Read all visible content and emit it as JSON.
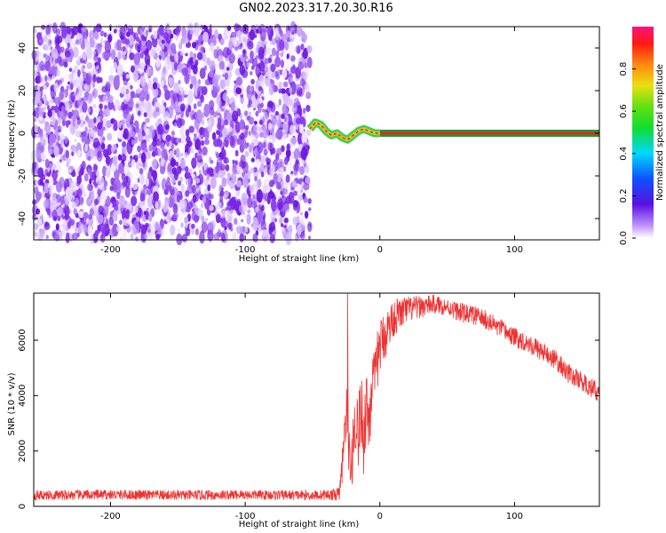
{
  "title": "GN02.2023.317.20.30.R16",
  "chart_data": [
    {
      "type": "heatmap",
      "name": "spectrogram",
      "xlabel": "Height of straight line (km)",
      "ylabel": "Frequency (Hz)",
      "xlim": [
        -257,
        163
      ],
      "ylim": [
        -50,
        50
      ],
      "xticks": [
        -200,
        -100,
        0,
        100
      ],
      "yticks": [
        -40,
        -20,
        0,
        20,
        40
      ],
      "noise_region_x": [
        -257,
        -52
      ],
      "signal_trace": {
        "x": [
          -52,
          -48,
          -44,
          -40,
          -36,
          -32,
          -28,
          -24,
          -20,
          -16,
          -12,
          -8,
          -4,
          0,
          40,
          80,
          120,
          163
        ],
        "y": [
          2,
          5,
          4,
          1,
          -1,
          0,
          -2,
          -3,
          -1,
          1,
          2,
          1,
          0,
          0,
          0,
          0,
          0,
          0
        ]
      },
      "colorbar": {
        "label": "Normalized spectral amplitude",
        "range": [
          0,
          1
        ],
        "ticks": [
          0.0,
          0.2,
          0.4,
          0.6,
          0.8
        ]
      }
    },
    {
      "type": "line",
      "name": "snr",
      "xlabel": "Height of straight line (km)",
      "ylabel": "SNR (10 * v/v)",
      "xlim": [
        -257,
        163
      ],
      "ylim": [
        0,
        7700
      ],
      "xticks": [
        -200,
        -100,
        0,
        100
      ],
      "yticks": [
        0,
        2000,
        4000,
        6000
      ],
      "color": "#ee3333",
      "x": [
        -257,
        -200,
        -150,
        -100,
        -50,
        -35,
        -30,
        -28,
        -26,
        -24,
        -22,
        -20,
        -18,
        -16,
        -14,
        -12,
        -10,
        -8,
        -6,
        -4,
        -2,
        0,
        10,
        20,
        30,
        40,
        50,
        60,
        70,
        80,
        90,
        100,
        110,
        120,
        130,
        140,
        150,
        163
      ],
      "y": [
        400,
        420,
        400,
        420,
        400,
        420,
        450,
        1500,
        2800,
        3300,
        1000,
        2200,
        3400,
        2500,
        3600,
        2400,
        3900,
        3000,
        4600,
        4300,
        5200,
        5800,
        6800,
        7100,
        7200,
        7300,
        7200,
        7000,
        6900,
        6700,
        6400,
        6100,
        5900,
        5600,
        5300,
        4800,
        4500,
        4100
      ],
      "noise_amplitude": [
        180,
        180,
        180,
        180,
        180,
        200,
        250,
        700,
        900,
        1300,
        800,
        1200,
        1400,
        1200,
        1500,
        1300,
        1500,
        1400,
        1300,
        1200,
        1100,
        1000,
        700,
        500,
        400,
        350,
        300,
        350,
        350,
        350,
        350,
        350,
        350,
        350,
        350,
        350,
        350,
        350
      ]
    }
  ]
}
